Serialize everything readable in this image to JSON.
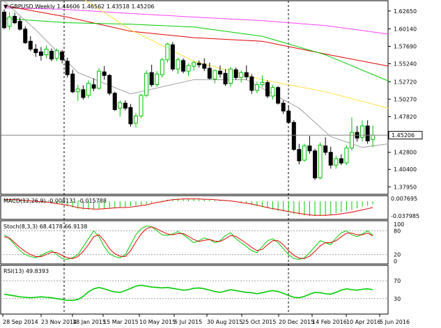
{
  "header": {
    "symbol_line": "GBPUSD,Weekly  1.44606 1.46562 1.43518 1.45206"
  },
  "colors": {
    "bull": "#00c000",
    "bear": "#000000",
    "frame": "#000000",
    "ma_gray": "#a0a0a0",
    "ma_green": "#00cc00",
    "ma_yellow": "#ffe040",
    "ma_red": "#e00000",
    "ma_magenta": "#ff40ff",
    "macd_hist": "#00cc00",
    "macd_signal": "#e00000",
    "stoch_main": "#00cc00",
    "stoch_signal": "#e00000",
    "rsi": "#00cc00"
  },
  "price_panel": {
    "y_ticks": [
      "1.62650",
      "1.60140",
      "1.57690",
      "1.55240",
      "1.52720",
      "1.50270",
      "1.47820",
      "1.42800",
      "1.40400",
      "1.37950"
    ],
    "current_price": "1.45206",
    "ylim": [
      1.37,
      1.64
    ]
  },
  "macd_panel": {
    "title": "MACD(12,26,9) -0.008131 -0.015788",
    "y_ticks": [
      "0.007695",
      "-0.037985"
    ]
  },
  "stoch_panel": {
    "title": "Stoch(8,3,3) 68.4178 66.9138",
    "y_ticks": [
      "100",
      "80",
      "20",
      "0"
    ]
  },
  "rsi_panel": {
    "title": "RSI(13) 49.8393",
    "y_ticks": [
      "70",
      "30"
    ]
  },
  "x_axis": {
    "labels": [
      "28 Sep 2014",
      "23 Nov 2014",
      "18 Jan 2015",
      "15 Mar 2015",
      "10 May 2015",
      "5 Jul 2015",
      "30 Aug 2015",
      "25 Oct 2015",
      "20 Dec 2015",
      "14 Feb 2016",
      "10 Apr 2016",
      "5 Jun 2016"
    ]
  },
  "chart_data": {
    "type": "candlestick",
    "title": "GBPUSD,Weekly",
    "ohlc_last": {
      "open": 1.44606,
      "high": 1.46562,
      "low": 1.43518,
      "close": 1.45206
    },
    "ylim": [
      1.37,
      1.64
    ],
    "candles": [
      [
        1.625,
        1.629,
        1.601,
        1.603
      ],
      [
        1.605,
        1.625,
        1.6,
        1.618
      ],
      [
        1.619,
        1.624,
        1.608,
        1.61
      ],
      [
        1.612,
        1.618,
        1.599,
        1.601
      ],
      [
        1.601,
        1.605,
        1.58,
        1.582
      ],
      [
        1.584,
        1.591,
        1.57,
        1.573
      ],
      [
        1.573,
        1.58,
        1.562,
        1.568
      ],
      [
        1.569,
        1.576,
        1.557,
        1.564
      ],
      [
        1.565,
        1.578,
        1.56,
        1.573
      ],
      [
        1.57,
        1.574,
        1.556,
        1.559
      ],
      [
        1.56,
        1.574,
        1.556,
        1.571
      ],
      [
        1.569,
        1.572,
        1.553,
        1.558
      ],
      [
        1.556,
        1.561,
        1.533,
        1.537
      ],
      [
        1.538,
        1.544,
        1.511,
        1.513
      ],
      [
        1.513,
        1.523,
        1.5,
        1.517
      ],
      [
        1.516,
        1.522,
        1.502,
        1.505
      ],
      [
        1.508,
        1.529,
        1.504,
        1.525
      ],
      [
        1.523,
        1.532,
        1.514,
        1.518
      ],
      [
        1.518,
        1.546,
        1.516,
        1.542
      ],
      [
        1.541,
        1.549,
        1.53,
        1.536
      ],
      [
        1.536,
        1.538,
        1.508,
        1.511
      ],
      [
        1.511,
        1.513,
        1.486,
        1.488
      ],
      [
        1.49,
        1.501,
        1.478,
        1.498
      ],
      [
        1.497,
        1.501,
        1.487,
        1.49
      ],
      [
        1.491,
        1.496,
        1.464,
        1.468
      ],
      [
        1.469,
        1.483,
        1.463,
        1.479
      ],
      [
        1.479,
        1.51,
        1.476,
        1.508
      ],
      [
        1.508,
        1.543,
        1.506,
        1.539
      ],
      [
        1.54,
        1.551,
        1.52,
        1.523
      ],
      [
        1.523,
        1.542,
        1.52,
        1.538
      ],
      [
        1.537,
        1.561,
        1.533,
        1.558
      ],
      [
        1.558,
        1.582,
        1.554,
        1.58
      ],
      [
        1.579,
        1.583,
        1.542,
        1.545
      ],
      [
        1.545,
        1.561,
        1.538,
        1.558
      ],
      [
        1.557,
        1.56,
        1.539,
        1.542
      ],
      [
        1.542,
        1.553,
        1.535,
        1.55
      ],
      [
        1.549,
        1.556,
        1.543,
        1.554
      ],
      [
        1.553,
        1.557,
        1.547,
        1.551
      ],
      [
        1.552,
        1.56,
        1.542,
        1.546
      ],
      [
        1.546,
        1.554,
        1.53,
        1.532
      ],
      [
        1.531,
        1.544,
        1.525,
        1.543
      ],
      [
        1.542,
        1.55,
        1.533,
        1.538
      ],
      [
        1.539,
        1.545,
        1.521,
        1.524
      ],
      [
        1.525,
        1.548,
        1.52,
        1.545
      ],
      [
        1.544,
        1.547,
        1.53,
        1.533
      ],
      [
        1.533,
        1.543,
        1.526,
        1.54
      ],
      [
        1.54,
        1.55,
        1.53,
        1.534
      ],
      [
        1.534,
        1.538,
        1.51,
        1.515
      ],
      [
        1.515,
        1.527,
        1.511,
        1.523
      ],
      [
        1.523,
        1.536,
        1.52,
        1.526
      ],
      [
        1.526,
        1.529,
        1.504,
        1.507
      ],
      [
        1.507,
        1.523,
        1.502,
        1.519
      ],
      [
        1.519,
        1.521,
        1.495,
        1.497
      ],
      [
        1.497,
        1.501,
        1.482,
        1.486
      ],
      [
        1.486,
        1.494,
        1.468,
        1.47
      ],
      [
        1.47,
        1.473,
        1.43,
        1.432
      ],
      [
        1.432,
        1.44,
        1.411,
        1.416
      ],
      [
        1.417,
        1.44,
        1.415,
        1.437
      ],
      [
        1.437,
        1.451,
        1.426,
        1.43
      ],
      [
        1.43,
        1.433,
        1.389,
        1.392
      ],
      [
        1.392,
        1.442,
        1.39,
        1.438
      ],
      [
        1.437,
        1.449,
        1.424,
        1.428
      ],
      [
        1.428,
        1.436,
        1.405,
        1.41
      ],
      [
        1.41,
        1.423,
        1.405,
        1.419
      ],
      [
        1.419,
        1.425,
        1.41,
        1.413
      ],
      [
        1.413,
        1.438,
        1.41,
        1.434
      ],
      [
        1.434,
        1.477,
        1.431,
        1.456
      ],
      [
        1.456,
        1.465,
        1.443,
        1.448
      ],
      [
        1.449,
        1.473,
        1.443,
        1.465
      ],
      [
        1.465,
        1.473,
        1.44,
        1.444
      ],
      [
        1.4461,
        1.4656,
        1.4352,
        1.4521
      ]
    ],
    "moving_averages": [
      {
        "color": "#ff40ff",
        "values": [
          [
            0,
            1.631
          ],
          [
            11,
            1.629
          ],
          [
            24,
            1.623
          ],
          [
            36,
            1.618
          ],
          [
            49,
            1.613
          ],
          [
            61,
            1.606
          ],
          [
            73,
            1.594
          ]
        ]
      },
      {
        "color": "#e00000",
        "values": [
          [
            0,
            1.634
          ],
          [
            12,
            1.618
          ],
          [
            24,
            1.598
          ],
          [
            36,
            1.589
          ],
          [
            49,
            1.584
          ],
          [
            61,
            1.566
          ],
          [
            73,
            1.549
          ]
        ]
      },
      {
        "color": "#00cc00",
        "values": [
          [
            0,
            1.616
          ],
          [
            12,
            1.61
          ],
          [
            24,
            1.608
          ],
          [
            36,
            1.604
          ],
          [
            49,
            1.591
          ],
          [
            61,
            1.565
          ],
          [
            73,
            1.528
          ]
        ]
      },
      {
        "color": "#ffe040",
        "values": [
          [
            0,
            1.71
          ],
          [
            12,
            1.658
          ],
          [
            24,
            1.6
          ],
          [
            36,
            1.556
          ],
          [
            49,
            1.53
          ],
          [
            61,
            1.513
          ],
          [
            73,
            1.49
          ]
        ]
      },
      {
        "color": "#a0a0a0",
        "values": [
          [
            0,
            1.64
          ],
          [
            6,
            1.6
          ],
          [
            14,
            1.54
          ],
          [
            24,
            1.51
          ],
          [
            36,
            1.53
          ],
          [
            46,
            1.53
          ],
          [
            56,
            1.49
          ],
          [
            62,
            1.45
          ],
          [
            68,
            1.435
          ],
          [
            73,
            1.44
          ]
        ]
      }
    ],
    "macd": {
      "histogram": [
        0.006,
        0.005,
        0.005,
        0.004,
        0.003,
        0.002,
        0.001,
        0.0,
        -0.002,
        -0.004,
        -0.006,
        -0.009,
        -0.012,
        -0.016,
        -0.019,
        -0.021,
        -0.021,
        -0.02,
        -0.019,
        -0.018,
        -0.017,
        -0.017,
        -0.016,
        -0.015,
        -0.013,
        -0.011,
        -0.009,
        -0.007,
        -0.004,
        -0.001,
        0.002,
        0.004,
        0.006,
        0.007,
        0.007,
        0.006,
        0.006,
        0.005,
        0.005,
        0.004,
        0.003,
        0.002,
        0.001,
        0.0,
        -0.002,
        -0.004,
        -0.006,
        -0.009,
        -0.012,
        -0.015,
        -0.018,
        -0.021,
        -0.024,
        -0.026,
        -0.029,
        -0.032,
        -0.034,
        -0.036,
        -0.038,
        -0.038,
        -0.037,
        -0.036,
        -0.034,
        -0.031,
        -0.028,
        -0.025,
        -0.022,
        -0.018,
        -0.014,
        -0.011,
        -0.008
      ],
      "signal": [
        0.004,
        0.004,
        0.004,
        0.003,
        0.002,
        0.001,
        0.0,
        -0.001,
        -0.002,
        -0.004,
        -0.006,
        -0.008,
        -0.01,
        -0.013,
        -0.016,
        -0.018,
        -0.019,
        -0.02,
        -0.02,
        -0.019,
        -0.018,
        -0.017,
        -0.016,
        -0.016,
        -0.015,
        -0.013,
        -0.011,
        -0.009,
        -0.006,
        -0.003,
        -0.001,
        0.002,
        0.004,
        0.005,
        0.006,
        0.006,
        0.006,
        0.006,
        0.005,
        0.005,
        0.004,
        0.003,
        0.002,
        0.001,
        -0.001,
        -0.003,
        -0.005,
        -0.007,
        -0.01,
        -0.013,
        -0.016,
        -0.019,
        -0.021,
        -0.024,
        -0.026,
        -0.029,
        -0.031,
        -0.033,
        -0.035,
        -0.036,
        -0.036,
        -0.036,
        -0.035,
        -0.034,
        -0.032,
        -0.03,
        -0.028,
        -0.025,
        -0.022,
        -0.019,
        -0.016
      ],
      "ylim": [
        -0.041,
        0.009
      ]
    },
    "stoch": {
      "main": [
        70,
        60,
        45,
        30,
        20,
        15,
        12,
        18,
        25,
        30,
        20,
        10,
        8,
        12,
        20,
        40,
        60,
        80,
        65,
        40,
        22,
        15,
        12,
        20,
        45,
        70,
        85,
        92,
        90,
        80,
        70,
        68,
        72,
        78,
        70,
        60,
        50,
        55,
        62,
        58,
        50,
        55,
        68,
        75,
        60,
        50,
        40,
        30,
        25,
        40,
        55,
        60,
        50,
        35,
        20,
        10,
        8,
        12,
        25,
        40,
        55,
        50,
        45,
        62,
        75,
        80,
        70,
        65,
        72,
        80,
        68
      ],
      "signal": [
        65,
        62,
        50,
        38,
        28,
        20,
        15,
        15,
        20,
        26,
        25,
        18,
        12,
        10,
        15,
        28,
        45,
        65,
        70,
        55,
        35,
        22,
        16,
        15,
        30,
        52,
        72,
        85,
        90,
        85,
        78,
        72,
        70,
        73,
        73,
        66,
        58,
        53,
        56,
        58,
        54,
        53,
        60,
        68,
        66,
        57,
        48,
        38,
        30,
        33,
        45,
        55,
        55,
        45,
        30,
        18,
        11,
        10,
        16,
        28,
        42,
        50,
        50,
        55,
        65,
        74,
        74,
        70,
        70,
        74,
        67
      ],
      "ylim": [
        0,
        100
      ],
      "levels": [
        80,
        20
      ]
    },
    "rsi": {
      "values": [
        40,
        38,
        36,
        34,
        33,
        32,
        33,
        34,
        33,
        32,
        30,
        28,
        26,
        26,
        28,
        35,
        45,
        52,
        55,
        52,
        48,
        45,
        44,
        48,
        53,
        58,
        60,
        58,
        56,
        55,
        54,
        55,
        53,
        51,
        49,
        50,
        53,
        54,
        52,
        49,
        46,
        44,
        47,
        50,
        48,
        46,
        44,
        43,
        41,
        43,
        46,
        48,
        46,
        42,
        37,
        33,
        32,
        35,
        40,
        44,
        43,
        41,
        40,
        44,
        49,
        52,
        50,
        49,
        51,
        52,
        50
      ],
      "ylim": [
        0,
        100
      ],
      "levels": [
        70,
        30
      ]
    }
  }
}
